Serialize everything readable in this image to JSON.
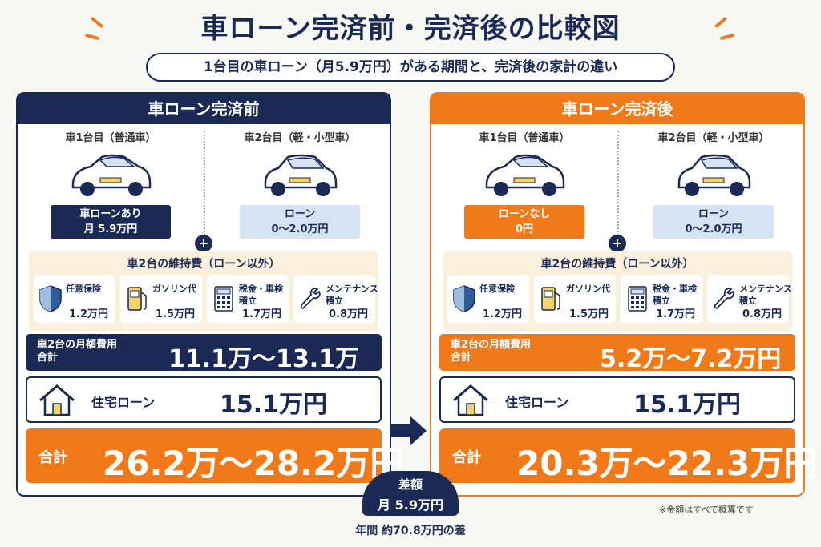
{
  "title": "車ローン完済前・完済後の比較図",
  "subtitle": "1台目の車ローン（月5.9万円）がある期間と、完済後の家計の違い",
  "before": {
    "header": "車ローン完済前",
    "car1": {
      "label": "車1台目（普通車）",
      "loan_line1": "車ローンあり",
      "loan_line2": "月 5.9万円"
    },
    "car2": {
      "label": "車2台目（軽・小型車）",
      "loan_line1": "ローン",
      "loan_line2": "0～2.0万円"
    },
    "plus": "+",
    "maint_title": "車2台の維持費（ローン以外）",
    "items": [
      {
        "icon": "shield-icon",
        "name": "任意保険",
        "amount": "1.2万円"
      },
      {
        "icon": "fuel-pump-icon",
        "name": "ガソリン代",
        "amount": "1.5万円"
      },
      {
        "icon": "calculator-icon",
        "name": "税金・車検\n積立",
        "amount": "1.7万円"
      },
      {
        "icon": "wrench-icon",
        "name": "メンテナンス\n積立",
        "amount": "0.8万円"
      }
    ],
    "monthly_label1": "車2台の月額費用",
    "monthly_label2": "合計",
    "monthly_value": "11.1万～13.1万円",
    "house_label": "住宅ローン",
    "house_value": "15.1万円",
    "total_label": "合計",
    "total_value": "26.2万～28.2万円"
  },
  "after": {
    "header": "車ローン完済後",
    "car1": {
      "label": "車1台目（普通車）",
      "loan_line1": "ローンなし",
      "loan_line2": "0円"
    },
    "car2": {
      "label": "車2台目（軽・小型車）",
      "loan_line1": "ローン",
      "loan_line2": "0～2.0万円"
    },
    "plus": "+",
    "maint_title": "車2台の維持費（ローン以外）",
    "items": [
      {
        "icon": "shield-icon",
        "name": "任意保険",
        "amount": "1.2万円"
      },
      {
        "icon": "fuel-pump-icon",
        "name": "ガソリン代",
        "amount": "1.5万円"
      },
      {
        "icon": "calculator-icon",
        "name": "税金・車検\n積立",
        "amount": "1.7万円"
      },
      {
        "icon": "wrench-icon",
        "name": "メンテナンス\n積立",
        "amount": "0.8万円"
      }
    ],
    "monthly_label1": "車2台の月額費用",
    "monthly_label2": "合計",
    "monthly_value": "5.2万～7.2万円",
    "house_label": "住宅ローン",
    "house_value": "15.1万円",
    "total_label": "合計",
    "total_value": "20.3万～22.3万円"
  },
  "difference": {
    "label": "差額",
    "value": "月 5.9万円",
    "yearly": "年間 約70.8万円の差"
  },
  "note": "※金額はすべて概算です",
  "colors": {
    "navy": "#1a2a55",
    "orange": "#f07a1a",
    "cream": "#fbf0dc",
    "light_blue": "#d6e3f2"
  }
}
